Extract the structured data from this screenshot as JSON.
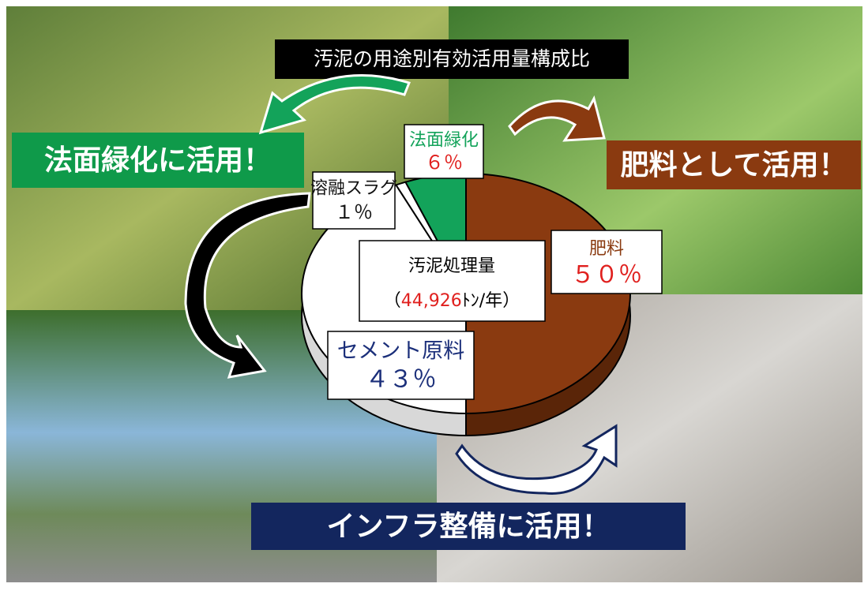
{
  "chart_data": {
    "type": "pie",
    "title": "汚泥の用途別有効活用量構成比",
    "categories": [
      "肥料",
      "セメント原料",
      "溶融スラグ",
      "法面緑化"
    ],
    "values": [
      50,
      43,
      1,
      6
    ],
    "value_labels": [
      "５０％",
      "４３％",
      "１％",
      "６％"
    ],
    "colors": [
      "#8a3a10",
      "#ffffff",
      "#ffffff",
      "#13a35a"
    ],
    "label_colors": [
      "#e0201e",
      "#1b2f7a",
      "#111111",
      "#e0201e"
    ],
    "center_title": "汚泥処理量",
    "center_open": "（",
    "total": {
      "value": 44926,
      "label": "44,926"
    },
    "center_unit": "ﾄﾝ/年）",
    "annotations": [
      "法面緑化に活用！",
      "肥料として活用！",
      "インフラ整備に活用！"
    ]
  }
}
